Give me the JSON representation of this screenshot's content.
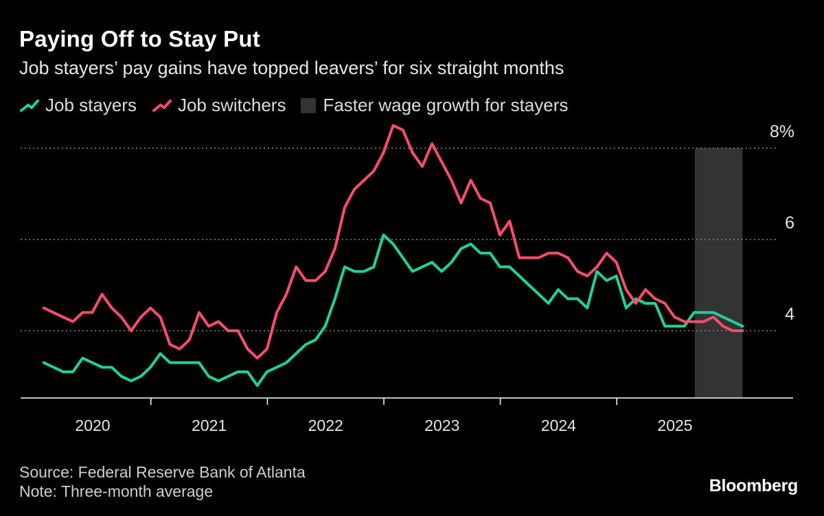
{
  "header": {
    "title": "Paying Off to Stay Put",
    "subtitle": "Job stayers’ pay gains have topped leavers’ for six straight months"
  },
  "legend": {
    "stayers": "Job stayers",
    "switchers": "Job switchers",
    "shaded": "Faster wage growth for stayers"
  },
  "footer": {
    "source": "Source: Federal Reserve Bank of Atlanta",
    "note": "Note: Three-month average",
    "brand": "Bloomberg"
  },
  "colors": {
    "stayers": "#1ed39b",
    "switchers": "#ff4d6a",
    "shade": "#333333",
    "grid": "#888888",
    "axis": "#ffffff"
  },
  "chart_data": {
    "type": "line",
    "title": "Paying Off to Stay Put",
    "xlabel": "",
    "ylabel": "",
    "ylim": [
      2.5,
      8
    ],
    "y_ticks": [
      4,
      6,
      8
    ],
    "y_tick_labels": [
      "4",
      "6",
      "8%"
    ],
    "x_tick_labels": [
      "2020",
      "2021",
      "2022",
      "2023",
      "2024",
      "2025"
    ],
    "x_ticks": [
      2020,
      2021,
      2022,
      2023,
      2024,
      2025
    ],
    "shaded_region": {
      "label": "Faster wage growth for stayers",
      "start": 2025.17,
      "end": 2025.58
    },
    "series": [
      {
        "name": "Job stayers",
        "start": 2019.58,
        "values": [
          3.3,
          3.2,
          3.1,
          3.1,
          3.4,
          3.3,
          3.2,
          3.2,
          3.0,
          2.9,
          3.0,
          3.2,
          3.5,
          3.3,
          3.3,
          3.3,
          3.3,
          3.0,
          2.9,
          3.0,
          3.1,
          3.1,
          2.8,
          3.1,
          3.2,
          3.3,
          3.5,
          3.7,
          3.8,
          4.1,
          4.7,
          5.4,
          5.3,
          5.3,
          5.4,
          6.1,
          5.9,
          5.6,
          5.3,
          5.4,
          5.5,
          5.3,
          5.5,
          5.8,
          5.9,
          5.7,
          5.7,
          5.4,
          5.4,
          5.2,
          5.0,
          4.8,
          4.6,
          4.9,
          4.7,
          4.7,
          4.5,
          5.3,
          5.1,
          5.2,
          4.5,
          4.7,
          4.6,
          4.6,
          4.1,
          4.1,
          4.1,
          4.4,
          4.4,
          4.4,
          4.3,
          4.2,
          4.1
        ]
      },
      {
        "name": "Job switchers",
        "start": 2019.58,
        "values": [
          4.5,
          4.4,
          4.3,
          4.2,
          4.4,
          4.4,
          4.8,
          4.5,
          4.3,
          4.0,
          4.3,
          4.5,
          4.3,
          3.7,
          3.6,
          3.8,
          4.4,
          4.1,
          4.2,
          4.0,
          4.0,
          3.6,
          3.4,
          3.6,
          4.4,
          4.8,
          5.4,
          5.1,
          5.1,
          5.3,
          5.8,
          6.7,
          7.1,
          7.3,
          7.5,
          7.9,
          8.5,
          8.4,
          7.9,
          7.6,
          8.1,
          7.7,
          7.3,
          6.8,
          7.3,
          6.9,
          6.8,
          6.1,
          6.4,
          5.6,
          5.6,
          5.6,
          5.7,
          5.7,
          5.6,
          5.3,
          5.2,
          5.4,
          5.7,
          5.5,
          4.9,
          4.6,
          4.9,
          4.7,
          4.6,
          4.3,
          4.2,
          4.2,
          4.2,
          4.3,
          4.1,
          4.0,
          4.0
        ]
      }
    ]
  }
}
